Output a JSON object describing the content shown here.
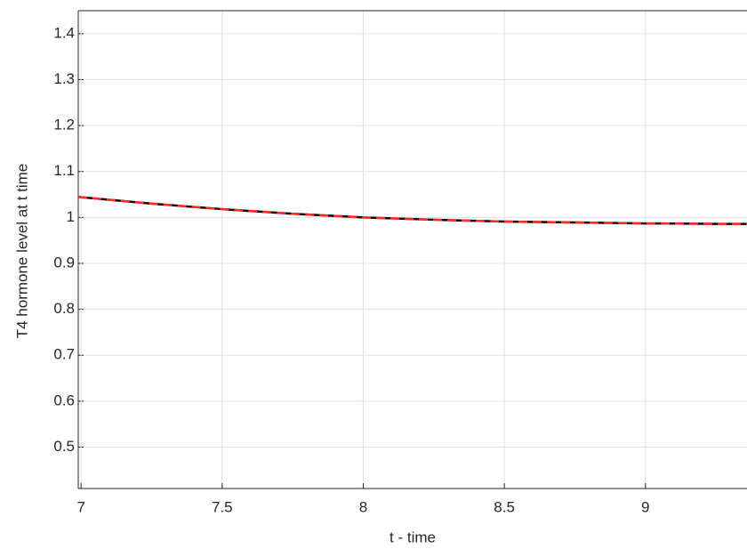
{
  "chart_data": {
    "type": "line",
    "x_label": "t - time",
    "y_label": "T4 hormone level at t time",
    "x": [
      6.99,
      7,
      7.25,
      7.5,
      7.75,
      8,
      8.25,
      8.5,
      8.75,
      9,
      9.25,
      9.36
    ],
    "series": [
      {
        "color": "#000000",
        "style": "solid",
        "values": [
          1.045,
          1.044,
          1.03,
          1.018,
          1.008,
          1.0,
          0.995,
          0.991,
          0.989,
          0.987,
          0.986,
          0.986
        ]
      },
      {
        "color": "#ff2a2a",
        "style": "dashed",
        "values": [
          1.045,
          1.044,
          1.03,
          1.018,
          1.008,
          1.0,
          0.995,
          0.991,
          0.989,
          0.987,
          0.986,
          0.986
        ]
      }
    ],
    "xlim": [
      6.99,
      9.36
    ],
    "ylim": [
      0.41,
      1.45
    ],
    "xticks": [
      7,
      7.5,
      8,
      8.5,
      9
    ],
    "yticks": [
      0.5,
      0.6,
      0.7,
      0.8,
      0.9,
      1,
      1.1,
      1.2,
      1.3,
      1.4
    ],
    "grid": true
  }
}
